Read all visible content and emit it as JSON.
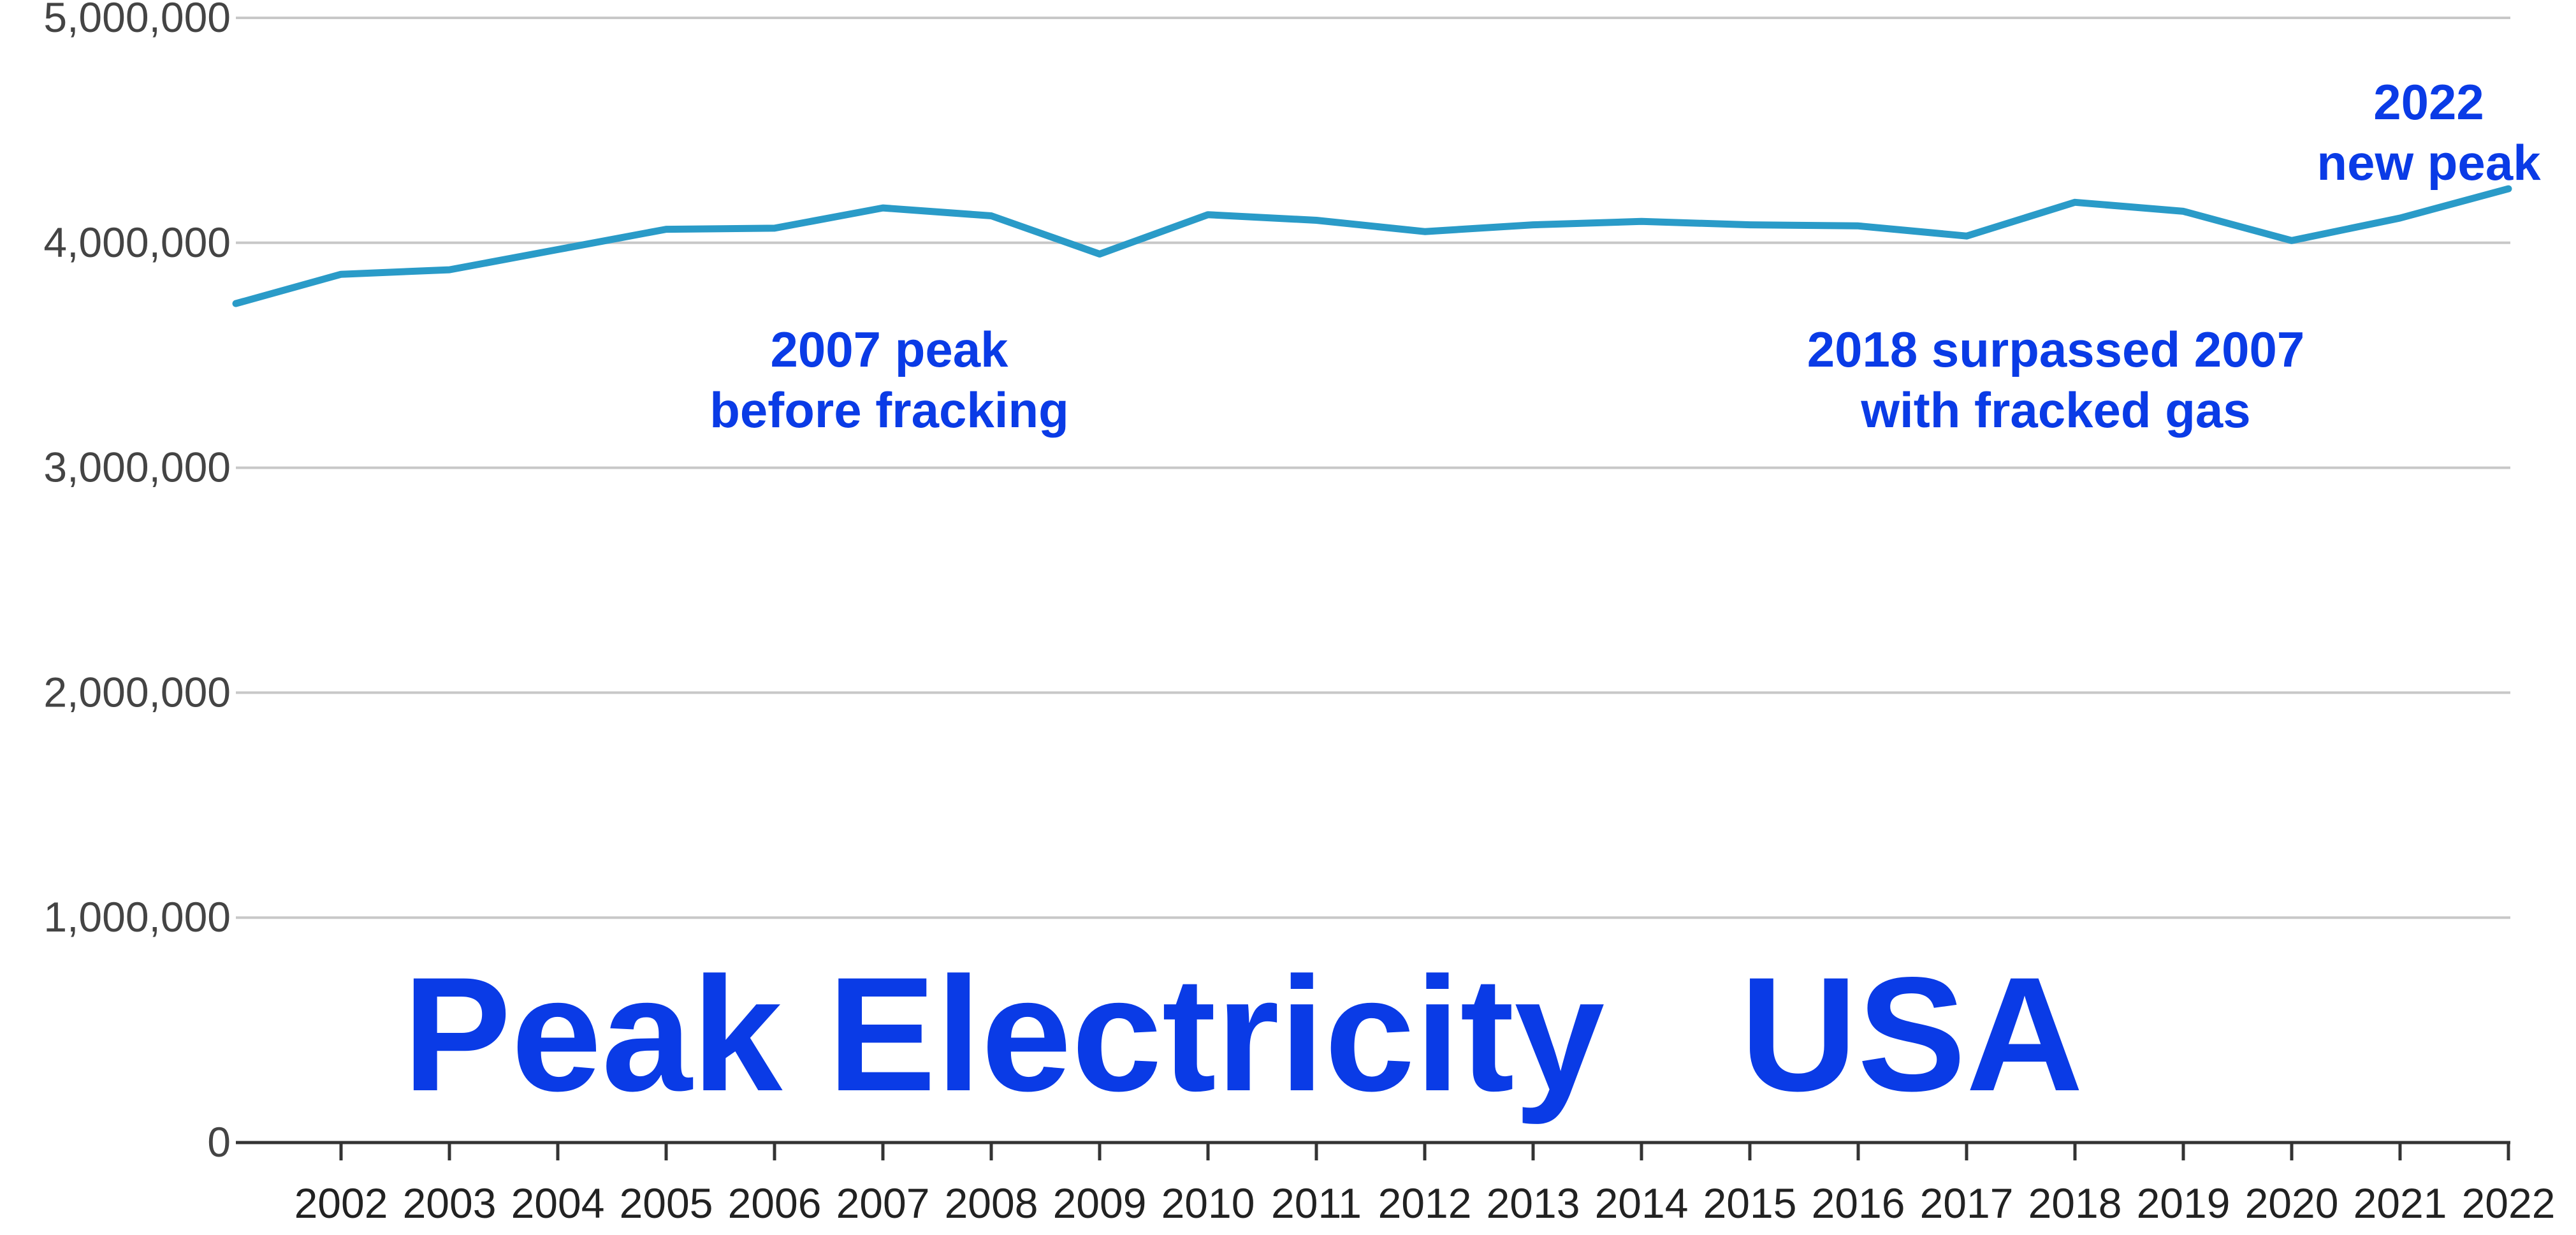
{
  "chart_data": {
    "type": "line",
    "title": "Peak Electricity   USA",
    "xlabel": "",
    "ylabel": "",
    "x": [
      "2002",
      "2003",
      "2004",
      "2005",
      "2006",
      "2007",
      "2008",
      "2009",
      "2010",
      "2011",
      "2012",
      "2013",
      "2014",
      "2015",
      "2016",
      "2017",
      "2018",
      "2019",
      "2020",
      "2021",
      "2022"
    ],
    "series": [
      {
        "values": [
          3860000,
          3880000,
          3970000,
          4060000,
          4065000,
          4155000,
          4120000,
          3950000,
          4125000,
          4100000,
          4050000,
          4080000,
          4095000,
          4080000,
          4075000,
          4030000,
          4180000,
          4140000,
          4010000,
          4110000,
          4240000
        ]
      }
    ],
    "line_start_value": 3730000,
    "ylim": [
      0,
      5000000
    ],
    "yticks": [
      0,
      1000000,
      2000000,
      3000000,
      4000000,
      5000000
    ],
    "ytick_labels": [
      "0",
      "1,000,000",
      "2,000,000",
      "3,000,000",
      "4,000,000",
      "5,000,000"
    ],
    "grid": true,
    "line_color": "#2a9bc8",
    "annotation_color": "#0a3be6",
    "annotations": [
      {
        "lines": [
          "2007 peak",
          "before fracking"
        ],
        "anchor_x": "2007",
        "anchor_y": 3450000
      },
      {
        "lines": [
          "2018 surpassed 2007",
          "with fracked gas"
        ],
        "anchor_x": "2018",
        "anchor_y": 3450000
      },
      {
        "lines": [
          "2022",
          "new peak"
        ],
        "anchor_x": "2022",
        "anchor_y": 4550000
      }
    ]
  }
}
